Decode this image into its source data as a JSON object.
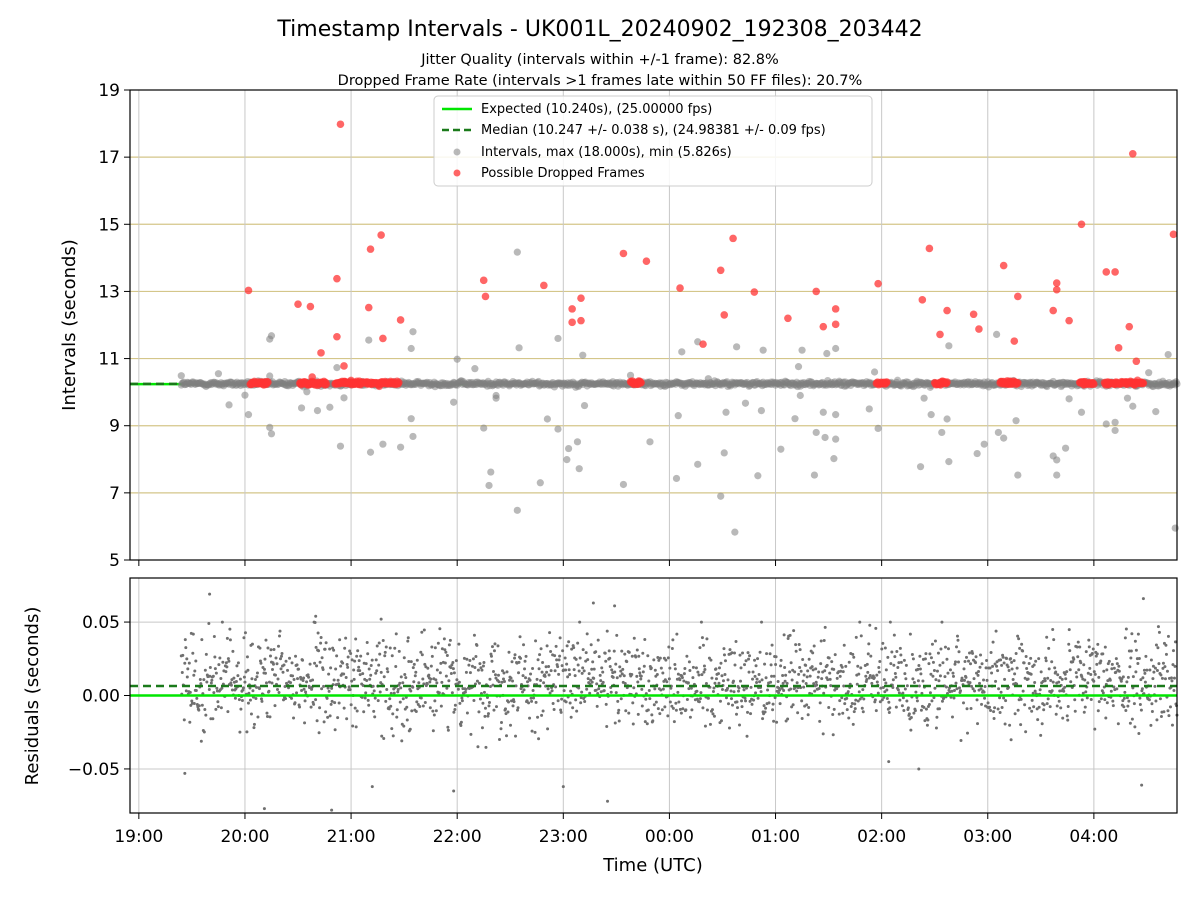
{
  "title": "Timestamp Intervals - UK001L_20240902_192308_203442",
  "subtitle_lines": [
    "Jitter Quality (intervals within +/-1 frame): 82.8%",
    "Dropped Frame Rate (intervals >1 frames late within 50 FF files): 20.7%"
  ],
  "colors": {
    "expected": "#00e600",
    "median": "#1a7a1a",
    "interval_points": "#808080",
    "dropped_points": "#ff3333",
    "hgrid_top": "#d4c68a",
    "grid": "#c8c8c8"
  },
  "chart_data": [
    {
      "type": "scatter",
      "panel": "intervals",
      "ylabel": "Intervals (seconds)",
      "ylim": [
        5,
        19
      ],
      "yticks": [
        5,
        7,
        9,
        11,
        13,
        15,
        17,
        19
      ],
      "xlim": [
        "2024-09-02T18:55",
        "2024-09-03T04:47"
      ],
      "grid": true,
      "legend_position": "upper center",
      "legend": [
        {
          "key": "expected",
          "label": "Expected (10.240s), (25.00000 fps)",
          "style": "solid line"
        },
        {
          "key": "median",
          "label": "Median (10.247 +/- 0.038 s), (24.98381 +/- 0.09 fps)",
          "style": "dashed line"
        },
        {
          "key": "intervals",
          "label": "Intervals, max (18.000s), min (5.826s)",
          "style": "gray marker"
        },
        {
          "key": "dropped",
          "label": "Possible Dropped Frames",
          "style": "red marker"
        }
      ],
      "expected_value": 10.24,
      "median_value": 10.247,
      "series": [
        {
          "name": "Intervals, max (18.000s), min (5.826s)",
          "points": [
            [
              "2024-09-02T19:24",
              10.49
            ],
            [
              "2024-09-02T19:45",
              10.55
            ],
            [
              "2024-09-02T19:51",
              9.62
            ],
            [
              "2024-09-02T20:00",
              9.91
            ],
            [
              "2024-09-02T20:02",
              9.33
            ],
            [
              "2024-09-02T20:14",
              10.48
            ],
            [
              "2024-09-02T20:14",
              11.58
            ],
            [
              "2024-09-02T20:15",
              11.68
            ],
            [
              "2024-09-02T20:14",
              8.95
            ],
            [
              "2024-09-02T20:15",
              8.76
            ],
            [
              "2024-09-02T20:32",
              9.53
            ],
            [
              "2024-09-02T20:35",
              10.01
            ],
            [
              "2024-09-02T20:41",
              9.45
            ],
            [
              "2024-09-02T20:48",
              9.55
            ],
            [
              "2024-09-02T20:52",
              10.73
            ],
            [
              "2024-09-02T20:54",
              8.39
            ],
            [
              "2024-09-02T20:56",
              9.83
            ],
            [
              "2024-09-02T21:10",
              11.55
            ],
            [
              "2024-09-02T21:11",
              8.21
            ],
            [
              "2024-09-02T21:18",
              8.45
            ],
            [
              "2024-09-02T21:28",
              8.36
            ],
            [
              "2024-09-02T21:34",
              9.21
            ],
            [
              "2024-09-02T21:35",
              8.68
            ],
            [
              "2024-09-02T21:34",
              11.3
            ],
            [
              "2024-09-02T21:35",
              11.8
            ],
            [
              "2024-09-02T21:58",
              9.7
            ],
            [
              "2024-09-02T22:00",
              10.98
            ],
            [
              "2024-09-02T22:10",
              10.7
            ],
            [
              "2024-09-02T22:15",
              8.93
            ],
            [
              "2024-09-02T22:19",
              7.62
            ],
            [
              "2024-09-02T22:18",
              7.22
            ],
            [
              "2024-09-02T22:22",
              9.9
            ],
            [
              "2024-09-02T22:22",
              9.82
            ],
            [
              "2024-09-02T22:34",
              6.48
            ],
            [
              "2024-09-02T22:34",
              14.17
            ],
            [
              "2024-09-02T22:35",
              11.32
            ],
            [
              "2024-09-02T22:47",
              7.3
            ],
            [
              "2024-09-02T22:51",
              9.2
            ],
            [
              "2024-09-02T22:57",
              11.6
            ],
            [
              "2024-09-02T22:57",
              8.9
            ],
            [
              "2024-09-02T23:02",
              7.99
            ],
            [
              "2024-09-02T23:03",
              8.32
            ],
            [
              "2024-09-02T23:08",
              8.52
            ],
            [
              "2024-09-02T23:09",
              7.72
            ],
            [
              "2024-09-02T23:11",
              11.1
            ],
            [
              "2024-09-02T23:12",
              9.6
            ],
            [
              "2024-09-02T23:34",
              7.25
            ],
            [
              "2024-09-02T23:38",
              10.5
            ],
            [
              "2024-09-02T23:49",
              8.52
            ],
            [
              "2024-09-03T00:04",
              7.43
            ],
            [
              "2024-09-03T00:05",
              9.3
            ],
            [
              "2024-09-03T00:07",
              11.2
            ],
            [
              "2024-09-03T00:16",
              7.85
            ],
            [
              "2024-09-03T00:16",
              11.5
            ],
            [
              "2024-09-03T00:22",
              10.4
            ],
            [
              "2024-09-03T00:29",
              6.9
            ],
            [
              "2024-09-03T00:31",
              8.19
            ],
            [
              "2024-09-03T00:32",
              9.4
            ],
            [
              "2024-09-03T00:37",
              5.83
            ],
            [
              "2024-09-03T00:38",
              11.35
            ],
            [
              "2024-09-03T00:43",
              9.67
            ],
            [
              "2024-09-03T00:50",
              7.51
            ],
            [
              "2024-09-03T00:52",
              9.45
            ],
            [
              "2024-09-03T00:53",
              11.25
            ],
            [
              "2024-09-03T01:03",
              8.3
            ],
            [
              "2024-09-03T01:11",
              9.21
            ],
            [
              "2024-09-03T01:13",
              10.76
            ],
            [
              "2024-09-03T01:14",
              9.9
            ],
            [
              "2024-09-03T01:15",
              11.25
            ],
            [
              "2024-09-03T01:22",
              7.53
            ],
            [
              "2024-09-03T01:23",
              8.8
            ],
            [
              "2024-09-03T01:27",
              9.4
            ],
            [
              "2024-09-03T01:28",
              8.65
            ],
            [
              "2024-09-03T01:29",
              11.15
            ],
            [
              "2024-09-03T01:33",
              8.02
            ],
            [
              "2024-09-03T01:34",
              8.6
            ],
            [
              "2024-09-03T01:34",
              9.33
            ],
            [
              "2024-09-03T01:34",
              11.3
            ],
            [
              "2024-09-03T01:53",
              9.5
            ],
            [
              "2024-09-03T01:56",
              10.6
            ],
            [
              "2024-09-03T01:58",
              8.92
            ],
            [
              "2024-09-03T02:22",
              7.78
            ],
            [
              "2024-09-03T02:24",
              9.82
            ],
            [
              "2024-09-03T02:28",
              9.33
            ],
            [
              "2024-09-03T02:34",
              8.8
            ],
            [
              "2024-09-03T02:37",
              9.2
            ],
            [
              "2024-09-03T02:38",
              11.38
            ],
            [
              "2024-09-03T02:38",
              7.93
            ],
            [
              "2024-09-03T02:54",
              8.17
            ],
            [
              "2024-09-03T02:58",
              8.45
            ],
            [
              "2024-09-03T03:05",
              11.72
            ],
            [
              "2024-09-03T03:06",
              8.8
            ],
            [
              "2024-09-03T03:09",
              8.63
            ],
            [
              "2024-09-03T03:16",
              9.15
            ],
            [
              "2024-09-03T03:17",
              7.53
            ],
            [
              "2024-09-03T03:37",
              8.1
            ],
            [
              "2024-09-03T03:39",
              7.53
            ],
            [
              "2024-09-03T03:39",
              7.98
            ],
            [
              "2024-09-03T03:44",
              8.33
            ],
            [
              "2024-09-03T03:46",
              9.8
            ],
            [
              "2024-09-03T03:53",
              9.4
            ],
            [
              "2024-09-03T04:07",
              9.05
            ],
            [
              "2024-09-03T04:12",
              8.86
            ],
            [
              "2024-09-03T04:12",
              9.1
            ],
            [
              "2024-09-03T04:19",
              9.82
            ],
            [
              "2024-09-03T04:22",
              9.58
            ],
            [
              "2024-09-03T04:31",
              10.58
            ],
            [
              "2024-09-03T04:35",
              9.42
            ],
            [
              "2024-09-03T04:42",
              11.12
            ],
            [
              "2024-09-03T04:46",
              5.95
            ]
          ]
        },
        {
          "name": "Possible Dropped Frames",
          "points": [
            [
              "2024-09-02T20:02",
              13.03
            ],
            [
              "2024-09-02T20:30",
              12.62
            ],
            [
              "2024-09-02T20:37",
              12.55
            ],
            [
              "2024-09-02T20:38",
              10.45
            ],
            [
              "2024-09-02T20:43",
              11.17
            ],
            [
              "2024-09-02T20:52",
              13.38
            ],
            [
              "2024-09-02T20:52",
              11.65
            ],
            [
              "2024-09-02T20:54",
              17.98
            ],
            [
              "2024-09-02T20:56",
              10.78
            ],
            [
              "2024-09-02T21:10",
              12.52
            ],
            [
              "2024-09-02T21:11",
              14.26
            ],
            [
              "2024-09-02T21:17",
              14.68
            ],
            [
              "2024-09-02T21:18",
              11.6
            ],
            [
              "2024-09-02T21:28",
              12.15
            ],
            [
              "2024-09-02T22:15",
              13.33
            ],
            [
              "2024-09-02T22:16",
              12.85
            ],
            [
              "2024-09-02T22:49",
              13.18
            ],
            [
              "2024-09-02T23:05",
              12.48
            ],
            [
              "2024-09-02T23:05",
              12.08
            ],
            [
              "2024-09-02T23:10",
              12.8
            ],
            [
              "2024-09-02T23:10",
              12.13
            ],
            [
              "2024-09-02T23:34",
              14.13
            ],
            [
              "2024-09-02T23:47",
              13.9
            ],
            [
              "2024-09-03T00:06",
              13.1
            ],
            [
              "2024-09-03T00:19",
              11.43
            ],
            [
              "2024-09-03T00:29",
              13.63
            ],
            [
              "2024-09-03T00:31",
              12.3
            ],
            [
              "2024-09-03T00:36",
              14.58
            ],
            [
              "2024-09-03T00:48",
              12.98
            ],
            [
              "2024-09-03T01:07",
              12.2
            ],
            [
              "2024-09-03T01:23",
              13.0
            ],
            [
              "2024-09-03T01:27",
              11.95
            ],
            [
              "2024-09-03T01:34",
              12.48
            ],
            [
              "2024-09-03T01:34",
              12.02
            ],
            [
              "2024-09-03T01:58",
              13.23
            ],
            [
              "2024-09-03T02:23",
              12.75
            ],
            [
              "2024-09-03T02:27",
              14.28
            ],
            [
              "2024-09-03T02:33",
              11.72
            ],
            [
              "2024-09-03T02:37",
              12.43
            ],
            [
              "2024-09-03T02:52",
              12.32
            ],
            [
              "2024-09-03T02:55",
              11.88
            ],
            [
              "2024-09-03T03:09",
              13.77
            ],
            [
              "2024-09-03T03:15",
              11.52
            ],
            [
              "2024-09-03T03:17",
              12.85
            ],
            [
              "2024-09-03T03:37",
              12.43
            ],
            [
              "2024-09-03T03:39",
              13.05
            ],
            [
              "2024-09-03T03:39",
              13.25
            ],
            [
              "2024-09-03T03:46",
              12.13
            ],
            [
              "2024-09-03T03:53",
              15.0
            ],
            [
              "2024-09-03T04:07",
              13.58
            ],
            [
              "2024-09-03T04:12",
              13.58
            ],
            [
              "2024-09-03T04:14",
              11.32
            ],
            [
              "2024-09-03T04:20",
              11.95
            ],
            [
              "2024-09-03T04:22",
              17.1
            ],
            [
              "2024-09-03T04:24",
              10.92
            ],
            [
              "2024-09-03T04:45",
              14.7
            ]
          ],
          "dense_clusters": [
            [
              "2024-09-02T20:03",
              "2024-09-02T20:13"
            ],
            [
              "2024-09-02T20:31",
              "2024-09-02T20:46"
            ],
            [
              "2024-09-02T20:51",
              "2024-09-02T21:27"
            ],
            [
              "2024-09-02T23:38",
              "2024-09-02T23:44"
            ],
            [
              "2024-09-03T01:57",
              "2024-09-03T02:03"
            ],
            [
              "2024-09-03T02:30",
              "2024-09-03T02:37"
            ],
            [
              "2024-09-03T03:07",
              "2024-09-03T03:17"
            ],
            [
              "2024-09-03T03:52",
              "2024-09-03T04:00"
            ],
            [
              "2024-09-03T04:06",
              "2024-09-03T04:28"
            ]
          ]
        }
      ]
    },
    {
      "type": "scatter",
      "panel": "residuals",
      "xlabel": "Time (UTC)",
      "ylabel": "Residuals (seconds)",
      "ylim": [
        -0.08,
        0.08
      ],
      "yticks": [
        -0.05,
        0.0,
        0.05
      ],
      "ytick_labels": [
        "−0.05",
        "0.00",
        "0.05"
      ],
      "xlim": [
        "2024-09-02T18:55",
        "2024-09-03T04:47"
      ],
      "xticks": [
        "19:00",
        "20:00",
        "21:00",
        "22:00",
        "23:00",
        "00:00",
        "01:00",
        "02:00",
        "03:00",
        "04:00"
      ],
      "grid": true,
      "expected_value": 0.0,
      "median_value": 0.0065,
      "residual_spread": {
        "center": 0.01,
        "typical_range": [
          -0.03,
          0.045
        ],
        "outliers_range": [
          -0.08,
          0.069
        ]
      },
      "residual_outliers": [
        [
          "2024-09-02T19:26",
          -0.053
        ],
        [
          "2024-09-02T19:40",
          0.069
        ],
        [
          "2024-09-02T20:11",
          -0.077
        ],
        [
          "2024-09-02T20:40",
          0.054
        ],
        [
          "2024-09-02T20:49",
          -0.078
        ],
        [
          "2024-09-02T21:12",
          -0.062
        ],
        [
          "2024-09-02T21:17",
          0.052
        ],
        [
          "2024-09-02T21:58",
          -0.065
        ],
        [
          "2024-09-02T23:00",
          -0.062
        ],
        [
          "2024-09-02T23:17",
          0.063
        ],
        [
          "2024-09-02T23:25",
          -0.072
        ],
        [
          "2024-09-02T23:29",
          0.061
        ],
        [
          "2024-09-03T02:04",
          -0.045
        ],
        [
          "2024-09-03T02:21",
          -0.05
        ],
        [
          "2024-09-03T04:28",
          0.066
        ],
        [
          "2024-09-03T04:27",
          -0.061
        ]
      ]
    }
  ],
  "xticks_top": [
    "19:00",
    "20:00",
    "21:00",
    "22:00",
    "23:00",
    "00:00",
    "01:00",
    "02:00",
    "03:00",
    "04:00"
  ]
}
